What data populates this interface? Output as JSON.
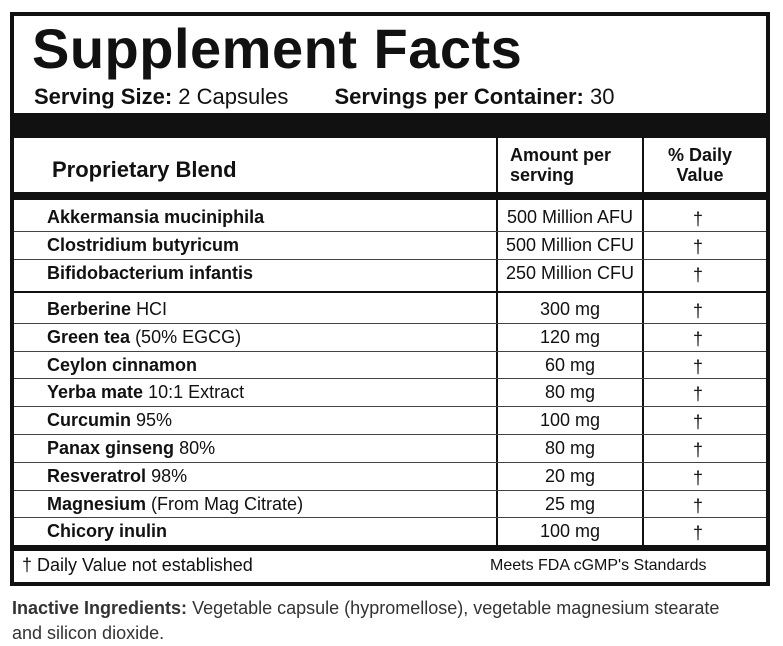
{
  "header": {
    "title": "Supplement Facts",
    "serving_size_label": "Serving Size:",
    "serving_size": "2 Capsules",
    "servings_label": "Servings per Container:",
    "servings": "30"
  },
  "table": {
    "columns": [
      "Proprietary Blend",
      "Amount per serving",
      "% Daily Value"
    ],
    "sections": [
      [
        {
          "name": "Akkermansia muciniphila",
          "amount": "500 Million AFU",
          "dv": "†"
        },
        {
          "name": "Clostridium butyricum",
          "amount": "500 Million CFU",
          "dv": "†"
        },
        {
          "name": "Bifidobacterium infantis",
          "amount": "250 Million CFU",
          "dv": "†"
        }
      ],
      [
        {
          "name": "Berberine",
          "detail": "HCI",
          "amount": "300 mg",
          "dv": "†"
        },
        {
          "name": "Green tea",
          "detail": "(50% EGCG)",
          "amount": "120 mg",
          "dv": "†"
        },
        {
          "name": "Ceylon cinnamon",
          "amount": "60 mg",
          "dv": "†"
        },
        {
          "name": "Yerba mate",
          "detail": "10:1 Extract",
          "amount": "80 mg",
          "dv": "†"
        },
        {
          "name": "Curcumin",
          "detail": "95%",
          "amount": "100 mg",
          "dv": "†"
        },
        {
          "name": "Panax ginseng",
          "detail": "80%",
          "amount": "80 mg",
          "dv": "†"
        },
        {
          "name": "Resveratrol",
          "detail": "98%",
          "amount": "20 mg",
          "dv": "†"
        },
        {
          "name": "Magnesium",
          "detail": "(From Mag Citrate)",
          "amount": "25 mg",
          "dv": "†"
        },
        {
          "name": "Chicory inulin",
          "amount": "100 mg",
          "dv": "†"
        }
      ]
    ],
    "footnote": "† Daily Value not established",
    "standard": "Meets FDA cGMP's Standards"
  },
  "inactive": {
    "label": "Inactive Ingredients:",
    "text": "Vegetable capsule (hypromellose),  vegetable magnesium stearate and silicon dioxide."
  }
}
